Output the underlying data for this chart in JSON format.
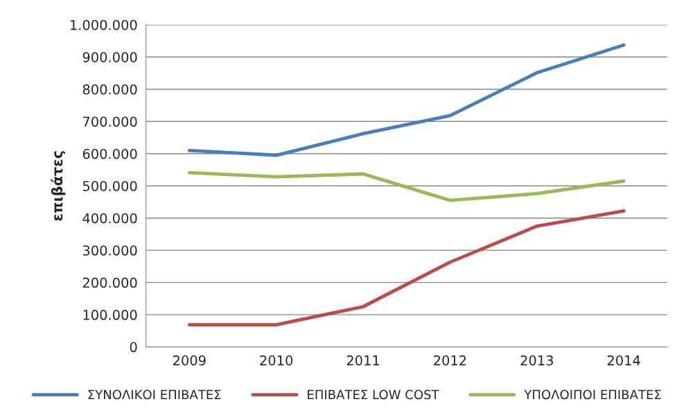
{
  "chart_data": {
    "type": "line",
    "ylabel": "επιβάτες",
    "categories": [
      "2009",
      "2010",
      "2011",
      "2012",
      "2013",
      "2014"
    ],
    "series": [
      {
        "name": "ΣΥΝΟΛΙΚΟΙ ΕΠΙΒΑΤΕΣ",
        "color": "#4a7ebb",
        "values": [
          610000,
          595000,
          662000,
          718000,
          851000,
          937000
        ]
      },
      {
        "name": "ΕΠΙΒΑΤΕΣ LOW COST",
        "color": "#be4b48",
        "values": [
          69000,
          69000,
          125000,
          263000,
          375000,
          422000
        ]
      },
      {
        "name": "ΥΠΟΛΟΙΠΟΙ ΕΠΙΒΑΤΕΣ",
        "color": "#98b954",
        "values": [
          541000,
          528000,
          537000,
          455000,
          476000,
          515000
        ]
      }
    ],
    "ylim": [
      0,
      1000000
    ],
    "yticks": [
      0,
      {
        "value": 100000,
        "label": "100.000"
      },
      {
        "value": 200000,
        "label": "200.000"
      },
      {
        "value": 300000,
        "label": "300.000"
      },
      {
        "value": 400000,
        "label": "400.000"
      },
      {
        "value": 500000,
        "label": "500.000"
      },
      {
        "value": 600000,
        "label": "600.000"
      },
      {
        "value": 700000,
        "label": "700.000"
      },
      {
        "value": 800000,
        "label": "800.000"
      },
      {
        "value": 900000,
        "label": "900.000"
      },
      {
        "value": 1000000,
        "label": "1.000.000"
      }
    ],
    "grid": "y",
    "legend": "bottom",
    "marker": "none",
    "line_style": "solid"
  }
}
